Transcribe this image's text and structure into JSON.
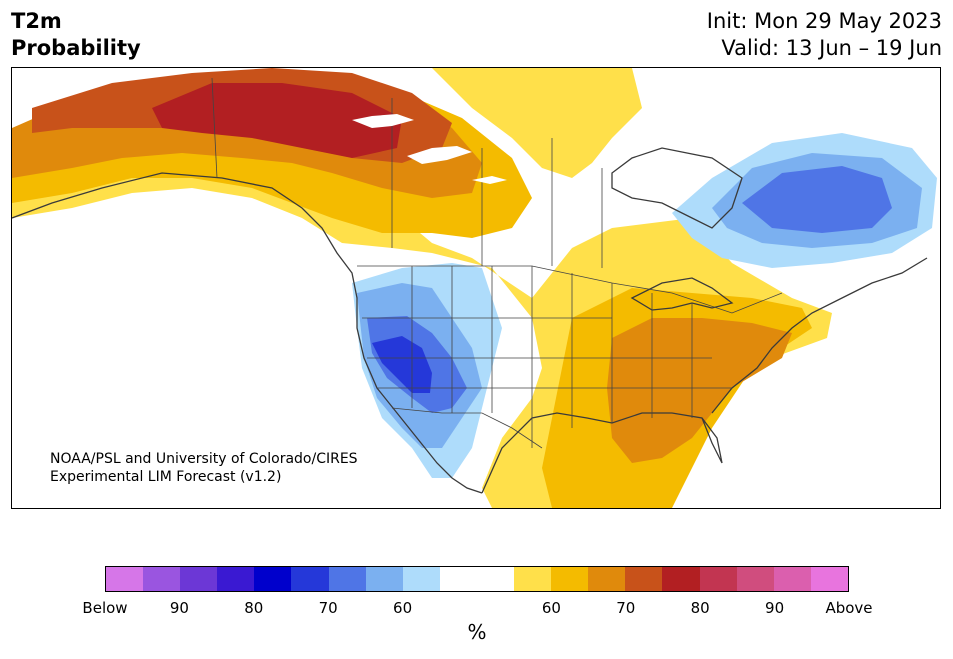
{
  "header": {
    "title_line1": "T2m",
    "title_line2": "Probability",
    "init": "Init: Mon 29 May 2023",
    "valid": "Valid: 13 Jun – 19 Jun"
  },
  "map": {
    "credit_line1": "NOAA/PSL and University of Colorado/CIRES",
    "credit_line2": "Experimental LIM Forecast (v1.2)"
  },
  "legend": {
    "unit": "%",
    "colors": [
      "#d676e8",
      "#9a55e0",
      "#6c37d6",
      "#3a19d2",
      "#0000cc",
      "#2538d9",
      "#4f75e6",
      "#7bb0f0",
      "#aedcfb",
      "#ffffff",
      "#ffffff",
      "#ffe04a",
      "#f4bb00",
      "#e08a0c",
      "#c8521a",
      "#b21f22",
      "#c23551",
      "#d04d7e",
      "#db5fae",
      "#e874de"
    ],
    "labels": [
      {
        "text": "Below",
        "pos": 0.0
      },
      {
        "text": "90",
        "pos": 0.1
      },
      {
        "text": "80",
        "pos": 0.2
      },
      {
        "text": "70",
        "pos": 0.3
      },
      {
        "text": "60",
        "pos": 0.4
      },
      {
        "text": "60",
        "pos": 0.6
      },
      {
        "text": "70",
        "pos": 0.7
      },
      {
        "text": "80",
        "pos": 0.8
      },
      {
        "text": "90",
        "pos": 0.9
      },
      {
        "text": "Above",
        "pos": 1.0
      }
    ]
  }
}
